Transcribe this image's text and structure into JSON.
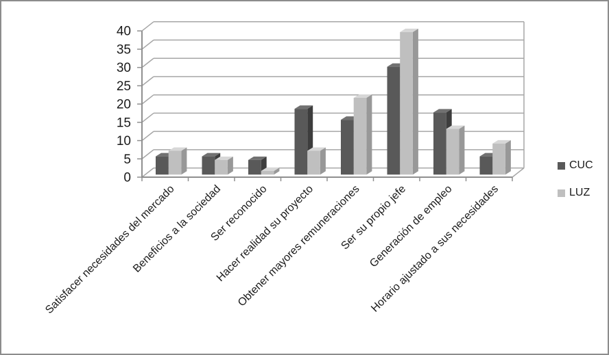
{
  "chart_data": {
    "type": "bar",
    "variant": "3d-clustered-column",
    "title": "",
    "xlabel": "",
    "ylabel": "",
    "categories": [
      "Satisfacer necesidades del mercado",
      "Beneficios a la sociedad",
      "Ser reconocido",
      "Hacer realidad su proyecto",
      "Obtener mayores remuneraciones",
      "Ser su propio jefe",
      "Generación de empleo",
      "Horario ajustado a sus necesidades"
    ],
    "series": [
      {
        "name": "CUC",
        "values": [
          5,
          5,
          4,
          18,
          15,
          29.5,
          17,
          5
        ],
        "faces": {
          "front": "#595959",
          "top": "#717171",
          "side": "#3d3d3d"
        }
      },
      {
        "name": "LUZ",
        "values": [
          6.5,
          4,
          1,
          6.5,
          21,
          39,
          12.5,
          8.5
        ],
        "faces": {
          "front": "#bfbfbf",
          "top": "#d7d7d7",
          "side": "#989898"
        }
      }
    ],
    "ylim": [
      0,
      40
    ],
    "ytick_step": 5,
    "yticks": [
      "0",
      "5",
      "10",
      "15",
      "20",
      "25",
      "30",
      "35",
      "40"
    ],
    "grid": true,
    "legend_position": "right",
    "colors": {
      "gridline": "#a6a6a6",
      "axis": "#8f8f8f",
      "text": "#1a1a1a",
      "background": "#ffffff",
      "page_border": "#8c8c8c"
    }
  }
}
